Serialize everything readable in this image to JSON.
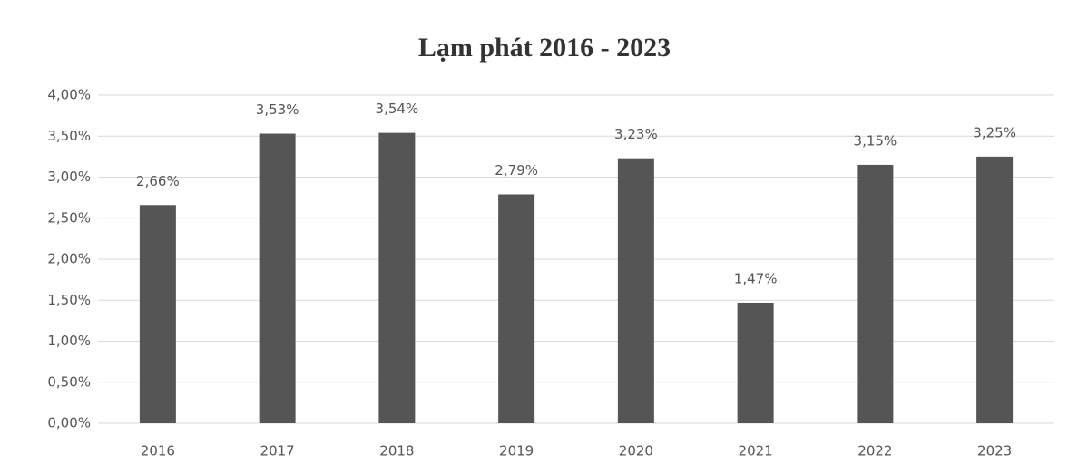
{
  "chart_data": {
    "type": "bar",
    "title": "Lạm phát 2016 - 2023",
    "categories": [
      "2016",
      "2017",
      "2018",
      "2019",
      "2020",
      "2021",
      "2022",
      "2023"
    ],
    "values": [
      2.66,
      3.53,
      3.54,
      2.79,
      3.23,
      1.47,
      3.15,
      3.25
    ],
    "value_labels": [
      "2,66%",
      "3,53%",
      "3,54%",
      "2,79%",
      "3,23%",
      "1,47%",
      "3,15%",
      "3,25%"
    ],
    "color": "#555555",
    "ylim": [
      0,
      4
    ],
    "yticks": [
      {
        "value": 0,
        "label": "0,00%"
      },
      {
        "value": 0.5,
        "label": "0,50%"
      },
      {
        "value": 1,
        "label": "1,00%"
      },
      {
        "value": 1.5,
        "label": "1,50%"
      },
      {
        "value": 2,
        "label": "2,00%"
      },
      {
        "value": 2.5,
        "label": "2,50%"
      },
      {
        "value": 3,
        "label": "3,00%"
      },
      {
        "value": 3.5,
        "label": "3,50%"
      },
      {
        "value": 4,
        "label": "4,00%"
      }
    ],
    "grid": true
  }
}
